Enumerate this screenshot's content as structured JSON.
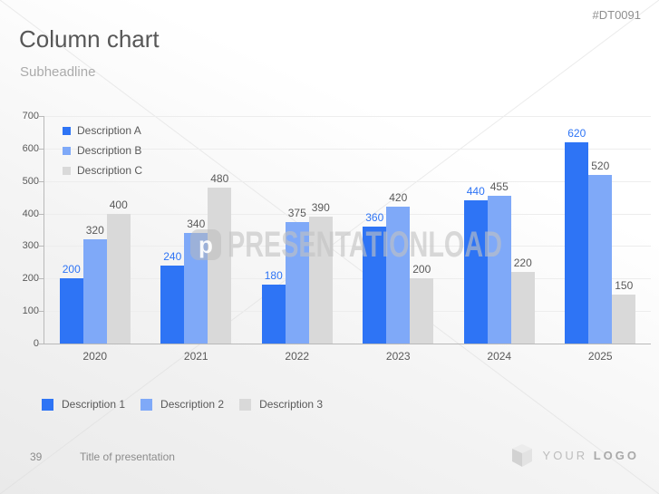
{
  "slide": {
    "sku": "#DT0091",
    "title": "Column chart",
    "subtitle": "Subheadline",
    "watermark": {
      "text": "PRESENTATIONLOAD",
      "logo_glyph": "p"
    },
    "footer": {
      "page_number": "39",
      "presentation_title": "Title of presentation",
      "logo_word_light": "YOUR",
      "logo_word_bold": "LOGO"
    }
  },
  "chart_data": {
    "type": "bar",
    "title": "",
    "xlabel": "",
    "ylabel": "",
    "categories": [
      "2020",
      "2021",
      "2022",
      "2023",
      "2024",
      "2025"
    ],
    "series": [
      {
        "name": "Description A",
        "color": "#2e74f5",
        "label_color": "#2e74f5",
        "values": [
          200,
          240,
          180,
          360,
          440,
          620
        ]
      },
      {
        "name": "Description B",
        "color": "#7fa9f8",
        "label_color": "#595959",
        "values": [
          320,
          340,
          375,
          420,
          455,
          520
        ]
      },
      {
        "name": "Description C",
        "color": "#d9d9d9",
        "label_color": "#595959",
        "values": [
          400,
          480,
          390,
          200,
          220,
          150
        ]
      }
    ],
    "ylim": [
      0,
      700
    ],
    "yticks": [
      0,
      100,
      200,
      300,
      400,
      500,
      600,
      700
    ],
    "grid": true,
    "data_labels": true,
    "legend_position": "top-left-inside"
  },
  "bottom_legend": {
    "items": [
      {
        "label": "Description 1",
        "color": "#2e74f5"
      },
      {
        "label": "Description 2",
        "color": "#7fa9f8"
      },
      {
        "label": "Description 3",
        "color": "#d9d9d9"
      }
    ]
  }
}
